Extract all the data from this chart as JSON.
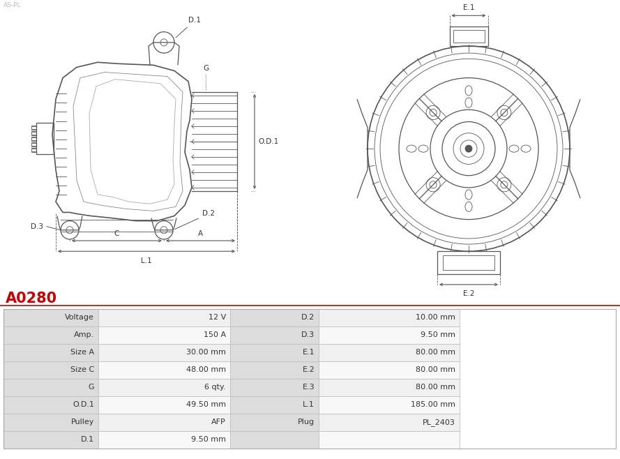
{
  "title": "A0280",
  "title_color": "#cc0000",
  "background_color": "#ffffff",
  "table_rows": [
    [
      "Voltage",
      "12 V",
      "D.2",
      "10.00 mm"
    ],
    [
      "Amp.",
      "150 A",
      "D.3",
      "9.50 mm"
    ],
    [
      "Size A",
      "30.00 mm",
      "E.1",
      "80.00 mm"
    ],
    [
      "Size C",
      "48.00 mm",
      "E.2",
      "80.00 mm"
    ],
    [
      "G",
      "6 qty.",
      "E.3",
      "80.00 mm"
    ],
    [
      "O.D.1",
      "49.50 mm",
      "L.1",
      "185.00 mm"
    ],
    [
      "Pulley",
      "AFP",
      "Plug",
      "PL_2403"
    ],
    [
      "D.1",
      "9.50 mm",
      "",
      ""
    ]
  ],
  "lc": "#555555",
  "lc_dim": "#555555",
  "text_color": "#333333",
  "row_bg_gray": "#e8e8e8",
  "row_bg_white": "#ffffff",
  "cell_label_bg": "#d0d0d0"
}
